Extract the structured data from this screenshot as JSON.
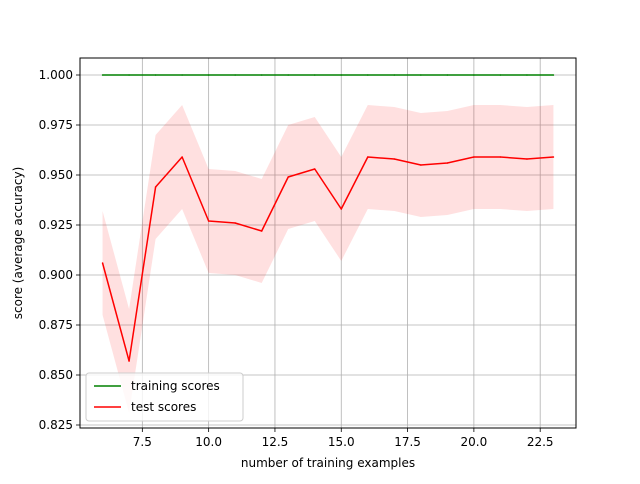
{
  "chart_data": {
    "type": "line",
    "title": "",
    "xlabel": "number of training examples",
    "ylabel": "score (average accuracy)",
    "xlim": [
      5.15,
      23.85
    ],
    "ylim": [
      0.8235,
      1.0085
    ],
    "xticks": [
      7.5,
      10.0,
      12.5,
      15.0,
      17.5,
      20.0,
      22.5
    ],
    "xtick_labels": [
      "7.5",
      "10.0",
      "12.5",
      "15.0",
      "17.5",
      "20.0",
      "22.5"
    ],
    "yticks": [
      0.825,
      0.85,
      0.875,
      0.9,
      0.925,
      0.95,
      0.975,
      1.0
    ],
    "ytick_labels": [
      "0.825",
      "0.850",
      "0.875",
      "0.900",
      "0.925",
      "0.950",
      "0.975",
      "1.000"
    ],
    "grid": true,
    "legend_position": "lower-left",
    "x": [
      6,
      7,
      8,
      9,
      10,
      11,
      12,
      13,
      14,
      15,
      16,
      17,
      18,
      19,
      20,
      21,
      22,
      23
    ],
    "series": [
      {
        "name": "training scores",
        "color": "#008000",
        "values": [
          1.0,
          1.0,
          1.0,
          1.0,
          1.0,
          1.0,
          1.0,
          1.0,
          1.0,
          1.0,
          1.0,
          1.0,
          1.0,
          1.0,
          1.0,
          1.0,
          1.0,
          1.0
        ]
      },
      {
        "name": "test scores",
        "color": "#ff0000",
        "values": [
          0.906,
          0.857,
          0.944,
          0.959,
          0.927,
          0.926,
          0.922,
          0.949,
          0.953,
          0.933,
          0.959,
          0.958,
          0.955,
          0.956,
          0.959,
          0.959,
          0.958,
          0.959
        ],
        "band_color": "#ff0000",
        "band_lower": [
          0.88,
          0.831,
          0.918,
          0.933,
          0.901,
          0.9,
          0.896,
          0.923,
          0.927,
          0.907,
          0.933,
          0.932,
          0.929,
          0.93,
          0.933,
          0.933,
          0.932,
          0.933
        ],
        "band_upper": [
          0.932,
          0.883,
          0.97,
          0.985,
          0.953,
          0.952,
          0.948,
          0.975,
          0.979,
          0.959,
          0.985,
          0.984,
          0.981,
          0.982,
          0.985,
          0.985,
          0.984,
          0.985
        ]
      }
    ]
  }
}
